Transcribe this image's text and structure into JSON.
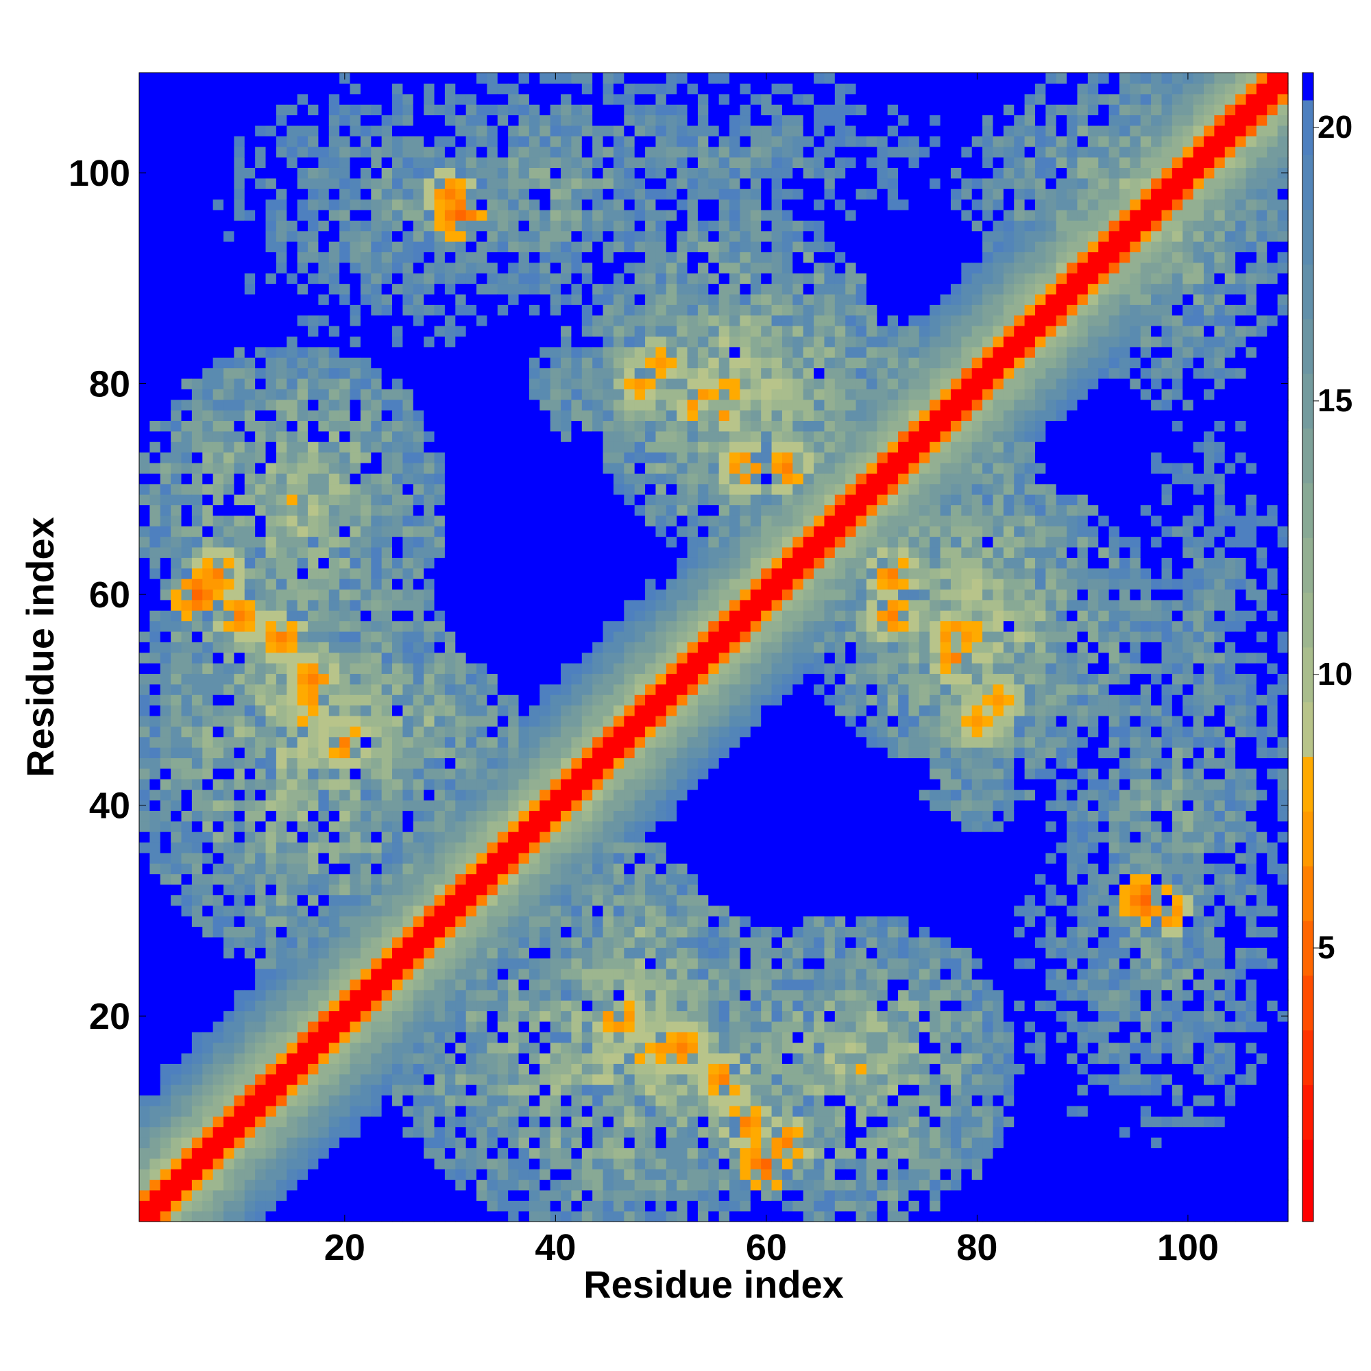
{
  "chart_data": {
    "type": "heatmap",
    "title": "",
    "xlabel": "Residue index",
    "ylabel": "Residue index",
    "n_residues": 109,
    "xlim": [
      1,
      109
    ],
    "ylim": [
      1,
      109
    ],
    "x_ticks": [
      20,
      40,
      60,
      80,
      100
    ],
    "y_ticks": [
      20,
      40,
      60,
      80,
      100
    ],
    "x_tick_labels": [
      "20",
      "40",
      "60",
      "80",
      "100"
    ],
    "y_tick_labels": [
      "20",
      "40",
      "60",
      "80",
      "100"
    ],
    "colorbar": {
      "range": [
        0,
        21
      ],
      "ticks": [
        5,
        10,
        15,
        20
      ],
      "tick_labels": [
        "5",
        "10",
        "15",
        "20"
      ],
      "levels": [
        {
          "max": 1.5,
          "color": "#ff0000"
        },
        {
          "max": 2.5,
          "color": "#ff1a00"
        },
        {
          "max": 3.5,
          "color": "#ff3300"
        },
        {
          "max": 4.5,
          "color": "#ff4d00"
        },
        {
          "max": 5.5,
          "color": "#ff6600"
        },
        {
          "max": 6.5,
          "color": "#ff8000"
        },
        {
          "max": 7.5,
          "color": "#ff9900"
        },
        {
          "max": 8.5,
          "color": "#ffaa00"
        },
        {
          "max": 9.5,
          "color": "#b8c48a"
        },
        {
          "max": 10.5,
          "color": "#a9bd8d"
        },
        {
          "max": 11.5,
          "color": "#9db68f"
        },
        {
          "max": 12.5,
          "color": "#93af92"
        },
        {
          "max": 13.5,
          "color": "#88a995"
        },
        {
          "max": 14.5,
          "color": "#7ea199"
        },
        {
          "max": 15.5,
          "color": "#749b9e"
        },
        {
          "max": 16.5,
          "color": "#6b95a3"
        },
        {
          "max": 17.5,
          "color": "#6290aa"
        },
        {
          "max": 18.5,
          "color": "#5a8bb0"
        },
        {
          "max": 19.5,
          "color": "#5385b8"
        },
        {
          "max": 20.5,
          "color": "#4e80bf"
        },
        {
          "max": 99,
          "color": "#0000ff"
        }
      ]
    },
    "diagonal_band": {
      "core_value": 1,
      "width_residues": 12
    },
    "contact_regions": [
      {
        "i": [
          2,
          28
        ],
        "j": [
          55,
          82
        ],
        "value": 11,
        "note": "region left 55-82"
      },
      {
        "i": [
          10,
          35
        ],
        "j": [
          40,
          55
        ],
        "value": 11
      },
      {
        "i": [
          25,
          55
        ],
        "j": [
          88,
          109
        ],
        "value": 14
      },
      {
        "i": [
          40,
          75
        ],
        "j": [
          72,
          88
        ],
        "value": 11
      },
      {
        "i": [
          80,
          109
        ],
        "j": [
          88,
          109
        ],
        "value": 13
      },
      {
        "i": [
          27,
          65
        ],
        "j": [
          1,
          30
        ],
        "value": 11
      },
      {
        "i": [
          65,
          95
        ],
        "j": [
          45,
          70
        ],
        "value": 11
      },
      {
        "i": [
          85,
          108
        ],
        "j": [
          10,
          40
        ],
        "value": 15
      },
      {
        "i": [
          95,
          109
        ],
        "j": [
          40,
          75
        ],
        "value": 16
      }
    ],
    "hot_spots": [
      {
        "i": 8,
        "j": 62,
        "value": 6
      },
      {
        "i": 14,
        "j": 56,
        "value": 6
      },
      {
        "i": 17,
        "j": 50,
        "value": 7
      },
      {
        "i": 30,
        "j": 98,
        "value": 6
      },
      {
        "i": 48,
        "j": 80,
        "value": 7
      },
      {
        "i": 54,
        "j": 78,
        "value": 6
      },
      {
        "i": 58,
        "j": 72,
        "value": 6
      },
      {
        "i": 72,
        "j": 62,
        "value": 6
      },
      {
        "i": 78,
        "j": 56,
        "value": 6
      },
      {
        "i": 82,
        "j": 50,
        "value": 7
      },
      {
        "i": 96,
        "j": 31,
        "value": 5
      },
      {
        "i": 52,
        "j": 17,
        "value": 6
      },
      {
        "i": 58,
        "j": 10,
        "value": 6
      },
      {
        "i": 60,
        "j": 6,
        "value": 5
      },
      {
        "i": 46,
        "j": 20,
        "value": 6
      }
    ]
  }
}
